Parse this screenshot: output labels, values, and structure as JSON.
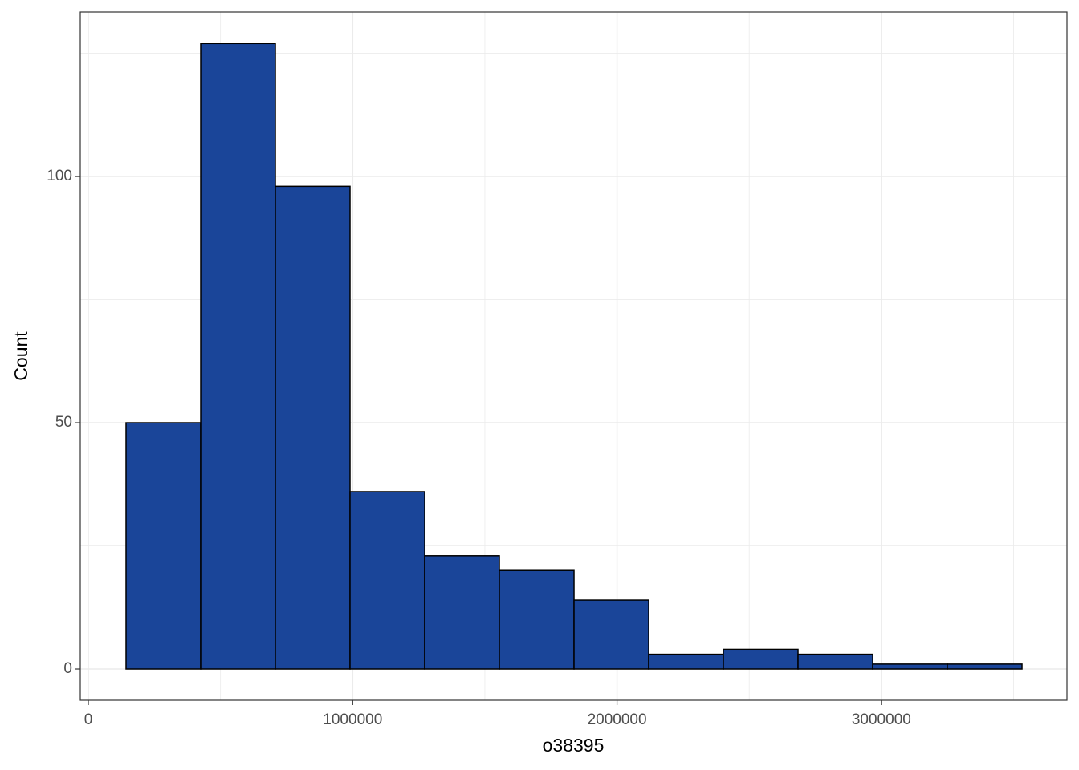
{
  "chart_data": {
    "type": "histogram",
    "x_label": "o38395",
    "y_label": "Count",
    "bins": [
      142700,
      425140,
      707580,
      990020,
      1272460,
      1554900,
      1837340,
      2119780,
      2402220,
      2684660,
      2967100,
      3249540,
      3531980
    ],
    "values": [
      50,
      127,
      98,
      36,
      23,
      20,
      14,
      3,
      4,
      3,
      1,
      1
    ],
    "color": "#1a4599",
    "edge_color": "#000000",
    "xlim": [
      -30400,
      3702000
    ],
    "xticks": [
      0,
      1000000,
      2000000,
      3000000
    ],
    "x_minor_ticks": [
      500000,
      1500000,
      2500000,
      3500000
    ],
    "ylim": [
      -6.35,
      133.4
    ],
    "yticks": [
      0,
      50,
      100
    ],
    "y_minor_ticks": [
      25,
      75,
      125
    ],
    "grid": true
  }
}
